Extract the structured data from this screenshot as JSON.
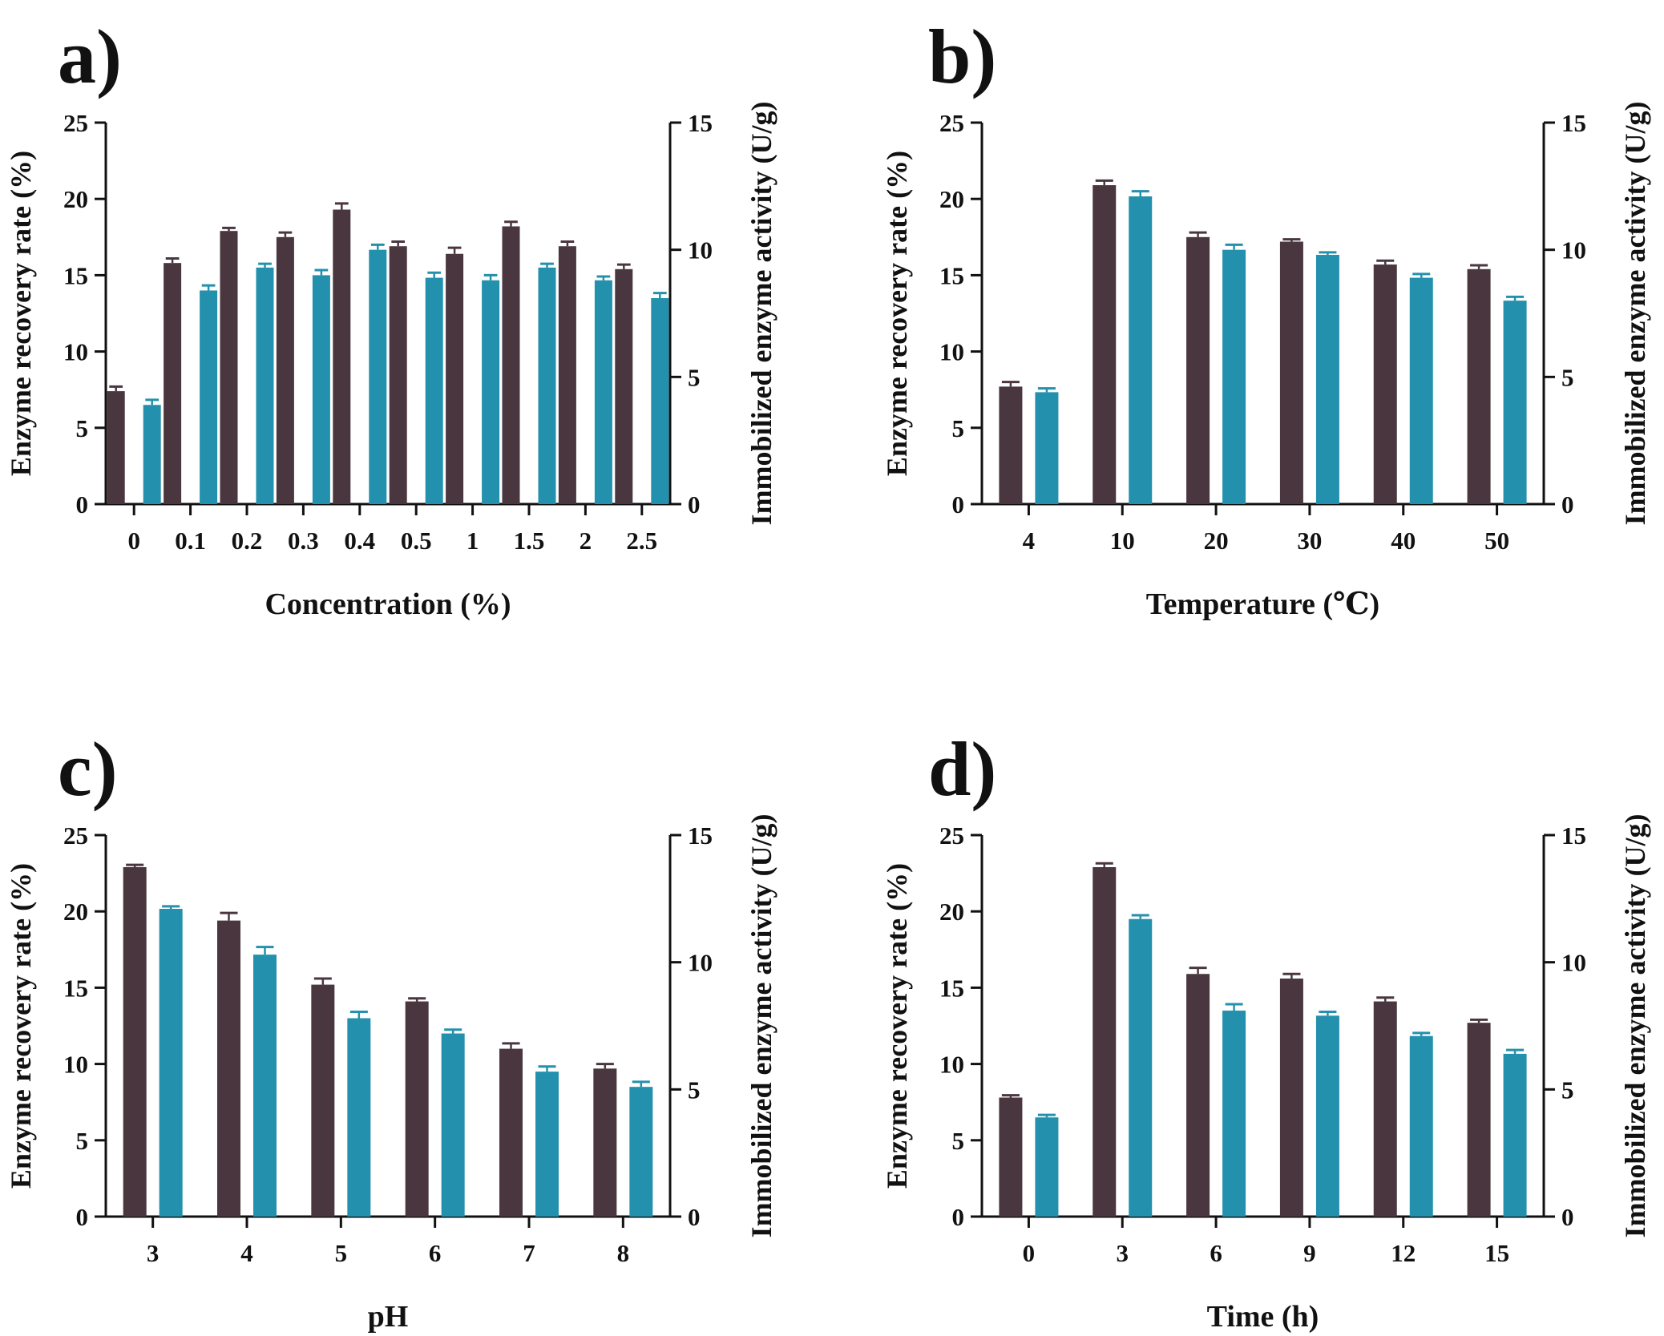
{
  "colors": {
    "recovery": "#4a363f",
    "activity": "#2391ad",
    "axis": "#111111"
  },
  "chart_data": [
    {
      "type": "bar",
      "panel_label": "a)",
      "xlabel": "Concentration (%)",
      "ylabel_left": "Enzyme recovery rate (%)",
      "ylabel_right": "Immobilized enzyme activity (U/g)",
      "ylim_left": [
        0,
        25
      ],
      "yticks_left": [
        0,
        5,
        10,
        15,
        20,
        25
      ],
      "ylim_right": [
        0,
        15
      ],
      "yticks_right": [
        0,
        5,
        10,
        15
      ],
      "categories": [
        "0",
        "0.1",
        "0.2",
        "0.3",
        "0.4",
        "0.5",
        "1",
        "1.5",
        "2",
        "2.5"
      ],
      "series": [
        {
          "name": "Enzyme recovery rate",
          "axis": "left",
          "color": "#4a363f",
          "values": [
            7.4,
            15.8,
            17.9,
            17.5,
            19.3,
            16.9,
            16.4,
            18.2,
            16.9,
            15.4
          ],
          "errors": [
            0.3,
            0.3,
            0.2,
            0.3,
            0.4,
            0.3,
            0.4,
            0.3,
            0.3,
            0.3
          ]
        },
        {
          "name": "Immobilized enzyme activity",
          "axis": "right",
          "color": "#2391ad",
          "values": [
            3.9,
            8.4,
            9.3,
            9.0,
            10.0,
            8.9,
            8.8,
            9.3,
            8.8,
            8.1
          ],
          "errors": [
            0.2,
            0.2,
            0.15,
            0.2,
            0.2,
            0.2,
            0.2,
            0.15,
            0.15,
            0.2
          ]
        }
      ]
    },
    {
      "type": "bar",
      "panel_label": "b)",
      "xlabel": "Temperature (℃)",
      "ylabel_left": "Enzyme recovery rate (%)",
      "ylabel_right": "Immobilized enzyme activity (U/g)",
      "ylim_left": [
        0,
        25
      ],
      "yticks_left": [
        0,
        5,
        10,
        15,
        20,
        25
      ],
      "ylim_right": [
        0,
        15
      ],
      "yticks_right": [
        0,
        5,
        10,
        15
      ],
      "categories": [
        "4",
        "10",
        "20",
        "30",
        "40",
        "50"
      ],
      "series": [
        {
          "name": "Enzyme recovery rate",
          "axis": "left",
          "color": "#4a363f",
          "values": [
            7.7,
            20.9,
            17.5,
            17.2,
            15.7,
            15.4
          ],
          "errors": [
            0.3,
            0.3,
            0.3,
            0.15,
            0.25,
            0.25
          ]
        },
        {
          "name": "Immobilized enzyme activity",
          "axis": "right",
          "color": "#2391ad",
          "values": [
            4.4,
            12.1,
            10.0,
            9.8,
            8.9,
            8.0
          ],
          "errors": [
            0.15,
            0.2,
            0.2,
            0.1,
            0.15,
            0.15
          ]
        }
      ]
    },
    {
      "type": "bar",
      "panel_label": "c)",
      "xlabel": "pH",
      "ylabel_left": "Enzyme recovery rate (%)",
      "ylabel_right": "Immobilized enzyme activity (U/g)",
      "ylim_left": [
        0,
        25
      ],
      "yticks_left": [
        0,
        5,
        10,
        15,
        20,
        25
      ],
      "ylim_right": [
        0,
        15
      ],
      "yticks_right": [
        0,
        5,
        10,
        15
      ],
      "categories": [
        "3",
        "4",
        "5",
        "6",
        "7",
        "8"
      ],
      "series": [
        {
          "name": "Enzyme recovery rate",
          "axis": "left",
          "color": "#4a363f",
          "values": [
            22.9,
            19.4,
            15.2,
            14.1,
            11.0,
            9.7
          ],
          "errors": [
            0.15,
            0.5,
            0.4,
            0.2,
            0.35,
            0.3
          ]
        },
        {
          "name": "Immobilized enzyme activity",
          "axis": "right",
          "color": "#2391ad",
          "values": [
            12.1,
            10.3,
            7.8,
            7.2,
            5.7,
            5.1
          ],
          "errors": [
            0.1,
            0.3,
            0.25,
            0.15,
            0.2,
            0.2
          ]
        }
      ]
    },
    {
      "type": "bar",
      "panel_label": "d)",
      "xlabel": "Time (h)",
      "ylabel_left": "Enzyme recovery rate (%)",
      "ylabel_right": "Immobilized enzyme activity (U/g)",
      "ylim_left": [
        0,
        25
      ],
      "yticks_left": [
        0,
        5,
        10,
        15,
        20,
        25
      ],
      "ylim_right": [
        0,
        15
      ],
      "yticks_right": [
        0,
        5,
        10,
        15
      ],
      "categories": [
        "0",
        "3",
        "6",
        "9",
        "12",
        "15"
      ],
      "series": [
        {
          "name": "Enzyme recovery rate",
          "axis": "left",
          "color": "#4a363f",
          "values": [
            7.8,
            22.9,
            15.9,
            15.6,
            14.1,
            12.7
          ],
          "errors": [
            0.15,
            0.25,
            0.4,
            0.3,
            0.25,
            0.2
          ]
        },
        {
          "name": "Immobilized enzyme activity",
          "axis": "right",
          "color": "#2391ad",
          "values": [
            3.9,
            11.7,
            8.1,
            7.9,
            7.1,
            6.4
          ],
          "errors": [
            0.1,
            0.15,
            0.25,
            0.15,
            0.12,
            0.15
          ]
        }
      ]
    }
  ]
}
